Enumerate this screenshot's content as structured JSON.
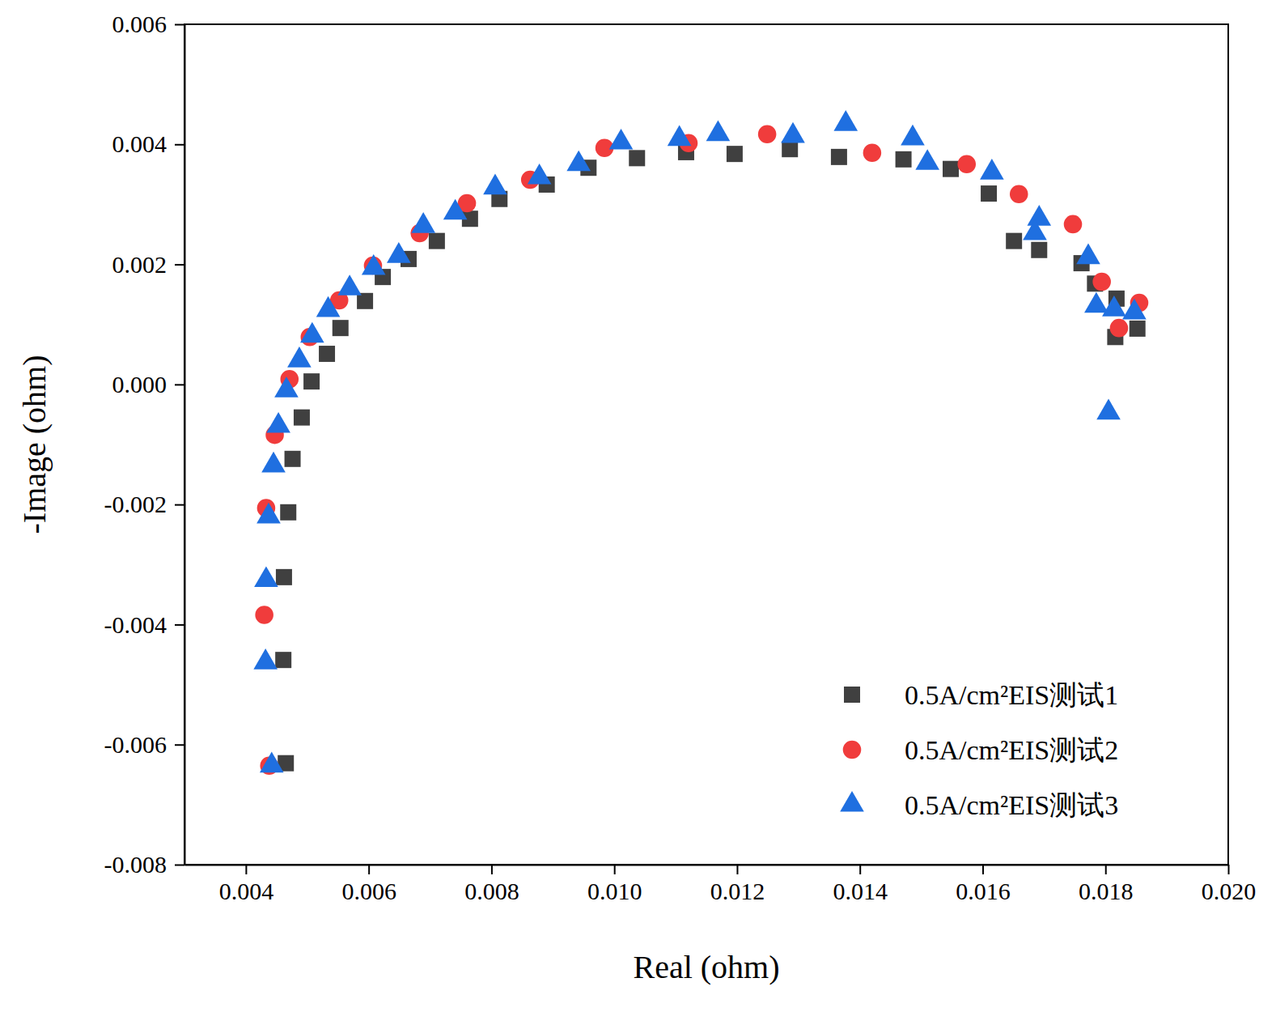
{
  "chart_data": {
    "type": "scatter",
    "x_label": "Real (ohm)",
    "y_label": "-Image (ohm)",
    "xlim": [
      0.003,
      0.02
    ],
    "ylim": [
      -0.008,
      0.006
    ],
    "xticks": [
      0.004,
      0.006,
      0.008,
      {
        "value": 0.01,
        "label": "0.010"
      },
      0.012,
      0.014,
      0.016,
      0.018,
      {
        "value": 0.02,
        "label": "0.020"
      }
    ],
    "yticks": [
      -0.008,
      -0.006,
      -0.004,
      -0.002,
      {
        "value": 0,
        "label": "0.000"
      },
      0.002,
      0.004,
      0.006
    ],
    "legend": "lower right",
    "grid": false,
    "series": [
      {
        "name": "0.5A/cm²EIS测试1",
        "color": "#404040",
        "marker": "square",
        "x": [
          0.00465,
          0.00461,
          0.00462,
          0.00469,
          0.00476,
          0.00491,
          0.00507,
          0.00532,
          0.00554,
          0.00594,
          0.00623,
          0.00665,
          0.00711,
          0.00765,
          0.00813,
          0.0089,
          0.00958,
          0.01037,
          0.01117,
          0.01196,
          0.01286,
          0.01366,
          0.01471,
          0.01548,
          0.0161,
          0.01651,
          0.01692,
          0.01761,
          0.01783,
          0.01818,
          0.01816,
          0.01852
        ],
        "values": [
          -0.00631,
          -0.00459,
          -0.00321,
          -0.00213,
          -0.00124,
          -0.00055,
          5e-05,
          0.00051,
          0.00094,
          0.00139,
          0.00179,
          0.00209,
          0.00239,
          0.00276,
          0.00309,
          0.00333,
          0.00361,
          0.00377,
          0.00387,
          0.00384,
          0.00392,
          0.00379,
          0.00375,
          0.00359,
          0.00318,
          0.00239,
          0.00224,
          0.00202,
          0.00168,
          0.00143,
          0.00079,
          0.00093
        ]
      },
      {
        "name": "0.5A/cm²EIS测试2",
        "color": "#f03c3c",
        "marker": "circle",
        "x": [
          0.00438,
          0.0043,
          0.00433,
          0.00447,
          0.00471,
          0.00504,
          0.00552,
          0.00607,
          0.00683,
          0.0076,
          0.00863,
          0.00984,
          0.01121,
          0.01249,
          0.0142,
          0.01574,
          0.01659,
          0.01747,
          0.01794,
          0.01822,
          0.01855
        ],
        "values": [
          -0.00635,
          -0.00384,
          -0.00206,
          -0.00084,
          9e-05,
          0.00079,
          0.0014,
          0.00198,
          0.00252,
          0.00302,
          0.00341,
          0.00394,
          0.00402,
          0.00417,
          0.00386,
          0.00367,
          0.00317,
          0.00267,
          0.00171,
          0.00094,
          0.00136
        ]
      },
      {
        "name": "0.5A/cm²EIS测试3",
        "color": "#1f6fe0",
        "marker": "triangle",
        "x": [
          0.00442,
          0.00432,
          0.00433,
          0.00437,
          0.00445,
          0.00453,
          0.00466,
          0.00487,
          0.00508,
          0.00534,
          0.00569,
          0.00608,
          0.00649,
          0.00689,
          0.00741,
          0.00806,
          0.00878,
          0.00942,
          0.01011,
          0.01106,
          0.01169,
          0.01291,
          0.01377,
          0.01486,
          0.0151,
          0.01615,
          0.01692,
          0.01685,
          0.01772,
          0.01785,
          0.01814,
          0.01847,
          0.01805
        ],
        "values": [
          -0.00635,
          -0.00463,
          -0.00326,
          -0.0022,
          -0.00135,
          -0.00069,
          -0.0001,
          0.0004,
          0.00081,
          0.00124,
          0.0016,
          0.00194,
          0.00214,
          0.00264,
          0.00286,
          0.00328,
          0.00345,
          0.00367,
          0.00403,
          0.00409,
          0.00417,
          0.00414,
          0.00434,
          0.0041,
          0.00369,
          0.00353,
          0.00276,
          0.00252,
          0.00212,
          0.00131,
          0.00125,
          0.0012,
          -0.00047
        ]
      }
    ]
  }
}
